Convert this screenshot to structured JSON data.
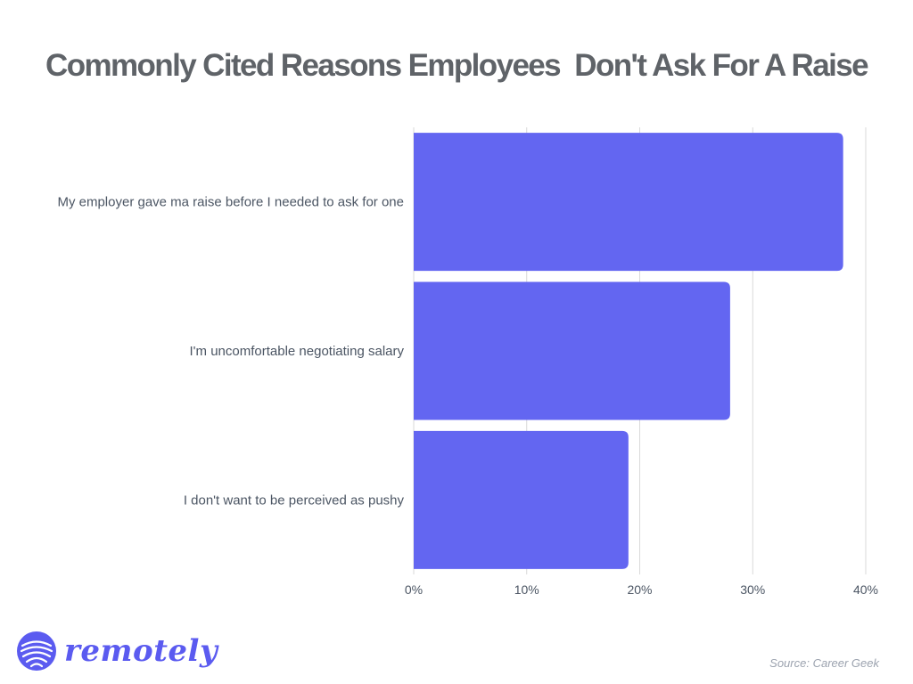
{
  "colors": {
    "title": "#5f6368",
    "bar": "#6366f1",
    "grid": "#d9d9d9",
    "brand": "#5b5bf0"
  },
  "chart_data": {
    "type": "bar",
    "orientation": "horizontal",
    "title": "Commonly Cited Reasons Employees  Don't Ask For A Raise",
    "categories": [
      "My employer gave ma raise before I needed to ask for one",
      "I'm uncomfortable negotiating salary",
      "I don't want to be perceived as pushy"
    ],
    "values": [
      38,
      28,
      19
    ],
    "xlim": [
      0,
      40
    ],
    "ticks": [
      0,
      10,
      20,
      30,
      40
    ],
    "tick_labels": [
      "0%",
      "10%",
      "20%",
      "30%",
      "40%"
    ],
    "grid": true
  },
  "footer": {
    "brand_name": "remotely",
    "brand_icon": "remotely-logo-icon",
    "source": "Source: Career Geek"
  }
}
